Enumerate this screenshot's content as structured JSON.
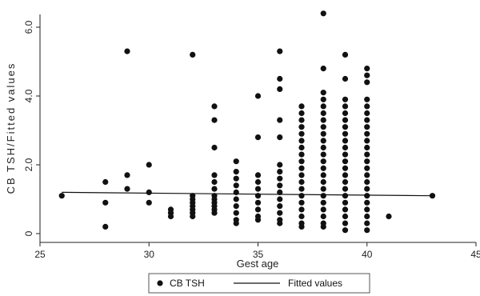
{
  "chart_data": {
    "type": "scatter",
    "xlabel": "Gest age",
    "ylabel": "CB TSH/Fitted values",
    "xlim": [
      25,
      45
    ],
    "ylim": [
      0,
      60
    ],
    "xticks": [
      25,
      30,
      35,
      40,
      45
    ],
    "yticks": [
      0,
      20,
      40,
      60
    ],
    "ytick_labels": [
      "0",
      "2.0",
      "4.0",
      "6.0"
    ],
    "grid": false,
    "legend": {
      "position": "bottom",
      "entries": [
        "CB TSH",
        "Fitted values"
      ]
    },
    "series": [
      {
        "name": "CB TSH",
        "kind": "scatter",
        "color": "#111111",
        "points": [
          [
            26,
            11
          ],
          [
            28,
            15
          ],
          [
            28,
            9
          ],
          [
            28,
            2
          ],
          [
            29,
            53
          ],
          [
            29,
            17
          ],
          [
            29,
            13
          ],
          [
            30,
            20
          ],
          [
            30,
            12
          ],
          [
            30,
            9
          ],
          [
            31,
            7
          ],
          [
            31,
            6
          ],
          [
            31,
            5
          ],
          [
            32,
            52
          ],
          [
            32,
            11
          ],
          [
            32,
            10
          ],
          [
            32,
            9
          ],
          [
            32,
            8
          ],
          [
            32,
            7
          ],
          [
            32,
            6
          ],
          [
            32,
            5
          ],
          [
            33,
            37
          ],
          [
            33,
            33
          ],
          [
            33,
            25
          ],
          [
            33,
            17
          ],
          [
            33,
            15
          ],
          [
            33,
            13
          ],
          [
            33,
            11
          ],
          [
            33,
            10
          ],
          [
            33,
            9
          ],
          [
            33,
            8
          ],
          [
            33,
            7
          ],
          [
            33,
            6
          ],
          [
            34,
            21
          ],
          [
            34,
            18
          ],
          [
            34,
            16
          ],
          [
            34,
            14
          ],
          [
            34,
            12
          ],
          [
            34,
            10
          ],
          [
            34,
            8
          ],
          [
            34,
            6
          ],
          [
            34,
            4
          ],
          [
            34,
            3
          ],
          [
            35,
            40
          ],
          [
            35,
            28
          ],
          [
            35,
            17
          ],
          [
            35,
            15
          ],
          [
            35,
            13
          ],
          [
            35,
            11
          ],
          [
            35,
            9
          ],
          [
            35,
            7
          ],
          [
            35,
            5
          ],
          [
            35,
            4
          ],
          [
            36,
            53
          ],
          [
            36,
            45
          ],
          [
            36,
            42
          ],
          [
            36,
            33
          ],
          [
            36,
            28
          ],
          [
            36,
            20
          ],
          [
            36,
            18
          ],
          [
            36,
            16
          ],
          [
            36,
            14
          ],
          [
            36,
            12
          ],
          [
            36,
            10
          ],
          [
            36,
            8
          ],
          [
            36,
            6
          ],
          [
            36,
            4
          ],
          [
            36,
            3
          ],
          [
            37,
            37
          ],
          [
            37,
            35
          ],
          [
            37,
            33
          ],
          [
            37,
            31
          ],
          [
            37,
            29
          ],
          [
            37,
            27
          ],
          [
            37,
            25
          ],
          [
            37,
            23
          ],
          [
            37,
            21
          ],
          [
            37,
            19
          ],
          [
            37,
            17
          ],
          [
            37,
            15
          ],
          [
            37,
            13
          ],
          [
            37,
            11
          ],
          [
            37,
            9
          ],
          [
            37,
            7
          ],
          [
            37,
            5
          ],
          [
            37,
            3
          ],
          [
            37,
            2
          ],
          [
            38,
            64
          ],
          [
            38,
            48
          ],
          [
            38,
            41
          ],
          [
            38,
            39
          ],
          [
            38,
            37
          ],
          [
            38,
            35
          ],
          [
            38,
            33
          ],
          [
            38,
            31
          ],
          [
            38,
            29
          ],
          [
            38,
            27
          ],
          [
            38,
            25
          ],
          [
            38,
            23
          ],
          [
            38,
            21
          ],
          [
            38,
            19
          ],
          [
            38,
            17
          ],
          [
            38,
            15
          ],
          [
            38,
            13
          ],
          [
            38,
            11
          ],
          [
            38,
            9
          ],
          [
            38,
            7
          ],
          [
            38,
            5
          ],
          [
            38,
            3
          ],
          [
            38,
            2
          ],
          [
            39,
            52
          ],
          [
            39,
            45
          ],
          [
            39,
            39
          ],
          [
            39,
            37
          ],
          [
            39,
            35
          ],
          [
            39,
            33
          ],
          [
            39,
            31
          ],
          [
            39,
            29
          ],
          [
            39,
            27
          ],
          [
            39,
            25
          ],
          [
            39,
            23
          ],
          [
            39,
            21
          ],
          [
            39,
            19
          ],
          [
            39,
            17
          ],
          [
            39,
            15
          ],
          [
            39,
            13
          ],
          [
            39,
            11
          ],
          [
            39,
            9
          ],
          [
            39,
            7
          ],
          [
            39,
            5
          ],
          [
            39,
            3
          ],
          [
            39,
            1
          ],
          [
            40,
            48
          ],
          [
            40,
            46
          ],
          [
            40,
            44
          ],
          [
            40,
            39
          ],
          [
            40,
            37
          ],
          [
            40,
            35
          ],
          [
            40,
            33
          ],
          [
            40,
            31
          ],
          [
            40,
            29
          ],
          [
            40,
            27
          ],
          [
            40,
            25
          ],
          [
            40,
            23
          ],
          [
            40,
            21
          ],
          [
            40,
            19
          ],
          [
            40,
            17
          ],
          [
            40,
            15
          ],
          [
            40,
            13
          ],
          [
            40,
            11
          ],
          [
            40,
            9
          ],
          [
            40,
            7
          ],
          [
            40,
            5
          ],
          [
            40,
            3
          ],
          [
            40,
            1
          ],
          [
            41,
            5
          ],
          [
            43,
            11
          ]
        ]
      },
      {
        "name": "Fitted values",
        "kind": "line",
        "color": "#111111",
        "points": [
          [
            26,
            12
          ],
          [
            43,
            11
          ]
        ]
      }
    ]
  }
}
